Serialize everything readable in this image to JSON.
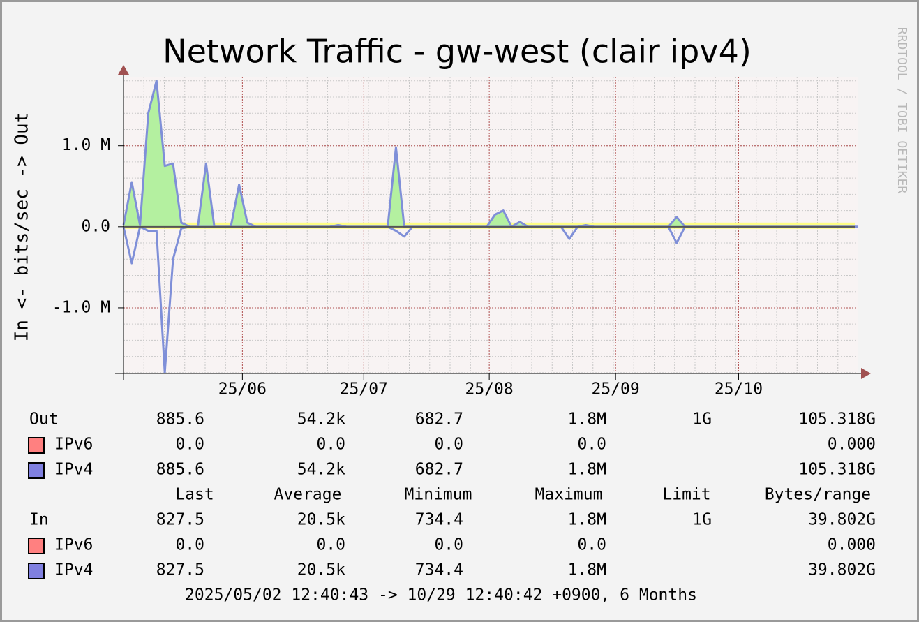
{
  "chart_data": {
    "type": "line",
    "title": "Network Traffic - gw-west (clair ipv4)",
    "y_label": "In <-  bits/sec -> Out",
    "watermark": "RRDTOOL / TOBI OETIKER",
    "ylim": [
      -1.81,
      1.85
    ],
    "yticks": [
      {
        "value": 1,
        "label": "1.0 M"
      },
      {
        "value": 0,
        "label": "0.0"
      },
      {
        "value": -1,
        "label": "-1.0 M"
      }
    ],
    "xlim": [
      0,
      89
    ],
    "xticks": [
      {
        "value": 14.4,
        "label": "25/06"
      },
      {
        "value": 29.1,
        "label": "25/07"
      },
      {
        "value": 44.3,
        "label": "25/08"
      },
      {
        "value": 59.6,
        "label": "25/09"
      },
      {
        "value": 74.5,
        "label": "25/10"
      }
    ],
    "grid": true,
    "series": [
      {
        "color": "#7f8fd8",
        "fill": "#b4f0a0",
        "values": [
          0.02,
          0.55,
          0.02,
          1.4,
          1.8,
          0.75,
          0.78,
          0.05,
          0.001,
          0.001,
          0.78,
          0.001,
          0.001,
          0.001,
          0.52,
          0.05,
          0.001,
          0.001,
          0.001,
          0.001,
          0.001,
          0.001,
          0.001,
          0.001,
          0.001,
          0.001,
          0.02,
          0.001,
          0.001,
          0.001,
          0.001,
          0.001,
          0.001,
          0.98,
          0.001,
          0.001,
          0.001,
          0.001,
          0.001,
          0.001,
          0.001,
          0.001,
          0.001,
          0.001,
          0.001,
          0.15,
          0.2,
          0.001,
          0.06,
          0.001,
          0.001,
          0.001,
          0.001,
          0.001,
          0.001,
          0.001,
          0.02,
          0.001,
          0.001,
          0.001,
          0.001,
          0.001,
          0.001,
          0.001,
          0.001,
          0.001,
          0.001,
          0.12,
          0.001,
          0.001,
          0.001,
          0.001,
          0.001,
          0.001,
          0.001,
          0.001,
          0.001,
          0.001,
          0.001,
          0.001,
          0.001,
          0.001,
          0.001,
          0.001,
          0.001,
          0.001,
          0.001,
          0.001,
          0.001,
          0.001
        ]
      },
      {
        "color": "#7f8fd8",
        "values": [
          -0.001,
          -0.45,
          -0.001,
          -0.05,
          -0.05,
          -1.8,
          -0.4,
          -0.02,
          -0.001,
          -0.001,
          -0.001,
          -0.001,
          -0.001,
          -0.001,
          -0.001,
          -0.001,
          -0.001,
          -0.001,
          -0.001,
          -0.001,
          -0.001,
          -0.001,
          -0.001,
          -0.001,
          -0.001,
          -0.001,
          -0.001,
          -0.001,
          -0.001,
          -0.001,
          -0.001,
          -0.001,
          -0.001,
          -0.05,
          -0.12,
          -0.001,
          -0.001,
          -0.001,
          -0.001,
          -0.001,
          -0.001,
          -0.001,
          -0.001,
          -0.001,
          -0.001,
          -0.001,
          -0.001,
          -0.001,
          -0.001,
          -0.001,
          -0.001,
          -0.001,
          -0.001,
          -0.001,
          -0.15,
          -0.001,
          -0.001,
          -0.001,
          -0.001,
          -0.001,
          -0.001,
          -0.001,
          -0.001,
          -0.001,
          -0.001,
          -0.001,
          -0.001,
          -0.2,
          -0.001,
          -0.001,
          -0.001,
          -0.001,
          -0.001,
          -0.001,
          -0.001,
          -0.001,
          -0.001,
          -0.001,
          -0.001,
          -0.001,
          -0.001,
          -0.001,
          -0.001,
          -0.001,
          -0.001,
          -0.001,
          -0.001,
          -0.001,
          -0.001,
          -0.001
        ]
      }
    ]
  },
  "legend": {
    "columns": [
      "Last",
      "Average",
      "Minimum",
      "Maximum",
      "Limit",
      "Bytes/range"
    ],
    "sections": [
      {
        "label": "Out",
        "cells": {
          "0": "885.6",
          "1": "54.2k",
          "2": "682.7",
          "3": "1.8M",
          "4": "1G",
          "5": "105.318G"
        },
        "rows": [
          {
            "name": "IPv6",
            "color": "#ff8080",
            "cells": {
              "0": "0.0",
              "1": "0.0",
              "2": "0.0",
              "3": "0.0",
              "5": "0.000"
            }
          },
          {
            "name": "IPv4",
            "color": "#8080e0",
            "cells": {
              "0": "885.6",
              "1": "54.2k",
              "2": "682.7",
              "3": "1.8M",
              "5": "105.318G"
            }
          }
        ]
      },
      {
        "label": "In",
        "cells": {
          "0": "827.5",
          "1": "20.5k",
          "2": "734.4",
          "3": "1.8M",
          "4": "1G",
          "5": "39.802G"
        },
        "rows": [
          {
            "name": "IPv6",
            "color": "#ff8080",
            "cells": {
              "0": "0.0",
              "1": "0.0",
              "2": "0.0",
              "3": "0.0",
              "5": "0.000"
            }
          },
          {
            "name": "IPv4",
            "color": "#8080e0",
            "cells": {
              "0": "827.5",
              "1": "20.5k",
              "2": "734.4",
              "3": "1.8M",
              "5": "39.802G"
            }
          }
        ]
      }
    ],
    "footer": "2025/05/02 12:40:43 -> 10/29 12:40:42 +0900, 6 Months"
  }
}
